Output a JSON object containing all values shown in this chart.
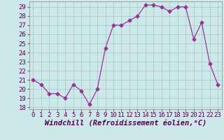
{
  "x": [
    0,
    1,
    2,
    3,
    4,
    5,
    6,
    7,
    8,
    9,
    10,
    11,
    12,
    13,
    14,
    15,
    16,
    17,
    18,
    19,
    20,
    21,
    22,
    23
  ],
  "y": [
    21.0,
    20.5,
    19.5,
    19.5,
    19.0,
    20.5,
    19.8,
    18.3,
    20.0,
    24.5,
    27.0,
    27.0,
    27.5,
    28.0,
    29.2,
    29.2,
    29.0,
    28.5,
    29.0,
    29.0,
    25.5,
    27.3,
    22.8,
    20.5
  ],
  "line_color": "#993399",
  "marker": "D",
  "marker_size": 2.5,
  "bg_color": "#cce8e8",
  "grid_color": "#aacccc",
  "xlabel": "Windchill (Refroidissement éolien,°C)",
  "xlabel_fontsize": 7.5,
  "tick_fontsize": 6.5,
  "ylim": [
    17.8,
    29.6
  ],
  "yticks": [
    18,
    19,
    20,
    21,
    22,
    23,
    24,
    25,
    26,
    27,
    28,
    29
  ],
  "xticks": [
    0,
    1,
    2,
    3,
    4,
    5,
    6,
    7,
    8,
    9,
    10,
    11,
    12,
    13,
    14,
    15,
    16,
    17,
    18,
    19,
    20,
    21,
    22,
    23
  ],
  "xlim": [
    -0.5,
    23.5
  ]
}
